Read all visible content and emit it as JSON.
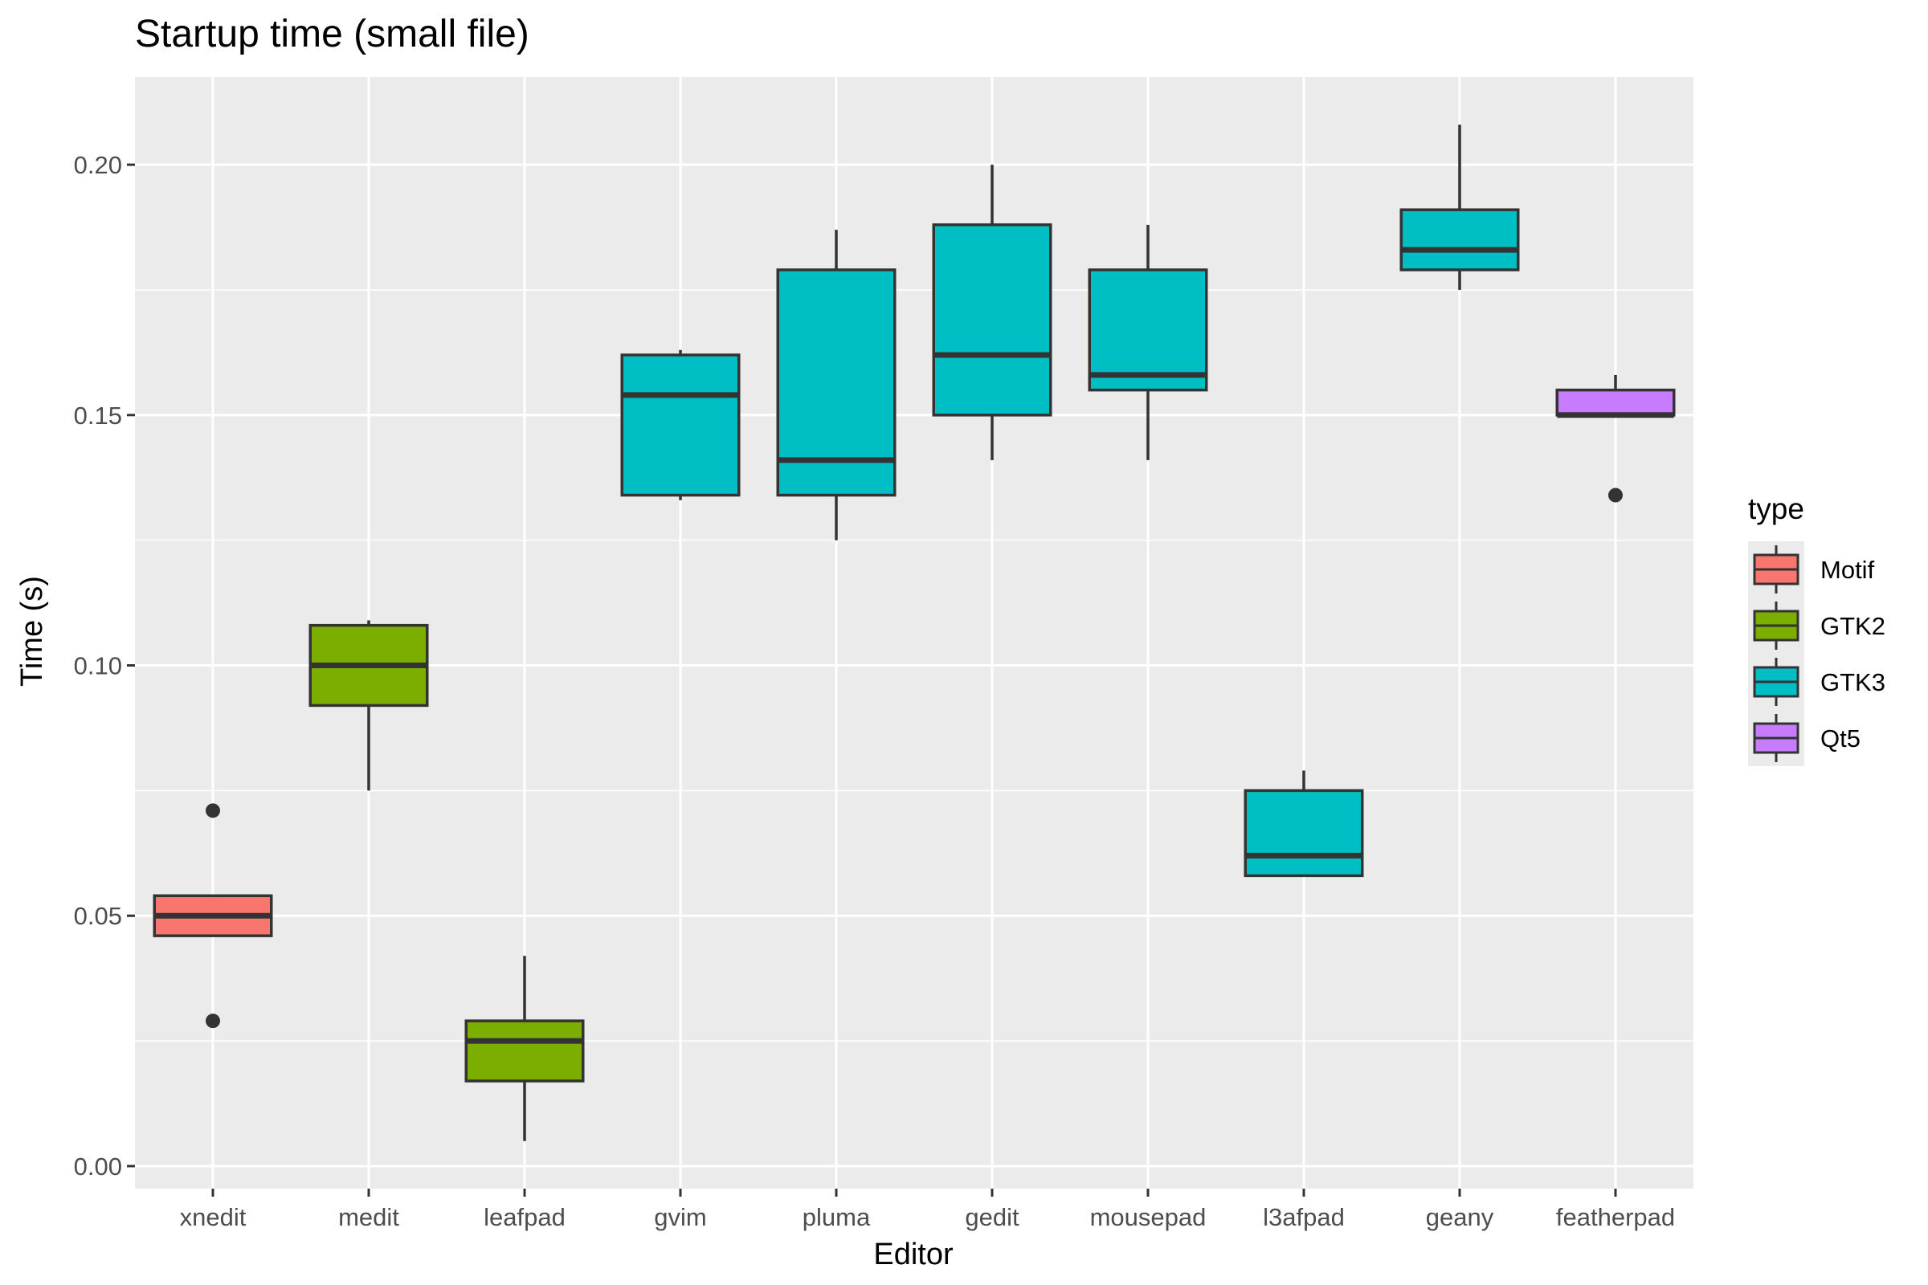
{
  "chart_data": {
    "type": "boxplot",
    "title": "Startup time (small file)",
    "xlabel": "Editor",
    "ylabel": "Time (s)",
    "ylim": [
      -0.0045,
      0.2175
    ],
    "yticks": [
      0.0,
      0.05,
      0.1,
      0.15,
      0.2
    ],
    "ytick_labels": [
      "0.00",
      "0.05",
      "0.10",
      "0.15",
      "0.20"
    ],
    "grid": true,
    "legend": {
      "title": "type",
      "position": "right",
      "entries": [
        {
          "label": "Motif",
          "color": "#F8766D"
        },
        {
          "label": "GTK2",
          "color": "#7CAE00"
        },
        {
          "label": "GTK3",
          "color": "#00BFC4"
        },
        {
          "label": "Qt5",
          "color": "#C77CFF"
        }
      ]
    },
    "categories": [
      "xnedit",
      "medit",
      "leafpad",
      "gvim",
      "pluma",
      "gedit",
      "mousepad",
      "l3afpad",
      "geany",
      "featherpad"
    ],
    "boxes": [
      {
        "editor": "xnedit",
        "type": "Motif",
        "whisker_low": 0.046,
        "q1": 0.046,
        "median": 0.05,
        "q3": 0.054,
        "whisker_high": 0.054,
        "outliers": [
          0.071,
          0.029
        ]
      },
      {
        "editor": "medit",
        "type": "GTK2",
        "whisker_low": 0.075,
        "q1": 0.092,
        "median": 0.1,
        "q3": 0.108,
        "whisker_high": 0.109,
        "outliers": []
      },
      {
        "editor": "leafpad",
        "type": "GTK2",
        "whisker_low": 0.005,
        "q1": 0.017,
        "median": 0.025,
        "q3": 0.029,
        "whisker_high": 0.042,
        "outliers": []
      },
      {
        "editor": "gvim",
        "type": "GTK3",
        "whisker_low": 0.133,
        "q1": 0.134,
        "median": 0.154,
        "q3": 0.162,
        "whisker_high": 0.163,
        "outliers": []
      },
      {
        "editor": "pluma",
        "type": "GTK3",
        "whisker_low": 0.125,
        "q1": 0.134,
        "median": 0.141,
        "q3": 0.179,
        "whisker_high": 0.187,
        "outliers": []
      },
      {
        "editor": "gedit",
        "type": "GTK3",
        "whisker_low": 0.141,
        "q1": 0.15,
        "median": 0.162,
        "q3": 0.188,
        "whisker_high": 0.2,
        "outliers": []
      },
      {
        "editor": "mousepad",
        "type": "GTK3",
        "whisker_low": 0.141,
        "q1": 0.155,
        "median": 0.158,
        "q3": 0.179,
        "whisker_high": 0.188,
        "outliers": []
      },
      {
        "editor": "l3afpad",
        "type": "GTK3",
        "whisker_low": 0.058,
        "q1": 0.058,
        "median": 0.062,
        "q3": 0.075,
        "whisker_high": 0.079,
        "outliers": []
      },
      {
        "editor": "geany",
        "type": "GTK3",
        "whisker_low": 0.175,
        "q1": 0.179,
        "median": 0.183,
        "q3": 0.191,
        "whisker_high": 0.208,
        "outliers": []
      },
      {
        "editor": "featherpad",
        "type": "Qt5",
        "whisker_low": 0.15,
        "q1": 0.15,
        "median": 0.15,
        "q3": 0.155,
        "whisker_high": 0.158,
        "outliers": [
          0.134
        ]
      }
    ],
    "colors": {
      "panel_background": "#EBEBEB",
      "grid_major": "#FFFFFF",
      "box_outline": "#333333",
      "tick_text": "#4D4D4D"
    }
  }
}
